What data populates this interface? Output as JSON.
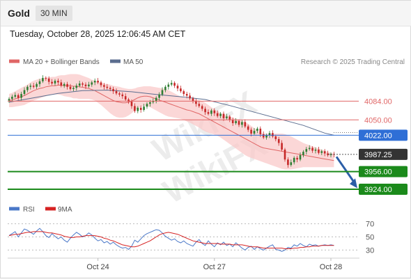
{
  "header": {
    "symbol": "Gold",
    "timeframe": "30 MIN",
    "datetime": "Tuesday, October 28, 2025 12:06:45 AM CET"
  },
  "legend": {
    "ma20_bb": "MA 20 + Bollinger Bands",
    "ma50": "MA 50",
    "rsi": "RSI",
    "ma9": "9MA"
  },
  "credit": "Research © 2025 Trading Central",
  "colors": {
    "candle_up": "#2e7d32",
    "candle_down": "#c62828",
    "ma20": "#e06666",
    "bollinger_fill": "#f9c9c9",
    "ma50": "#5b6d8f",
    "resistance": "#e06666",
    "pivot": "#2f6fd6",
    "support": "#1b8a1b",
    "current": "#333333",
    "arrow": "#2b5ea7",
    "rsi": "#4a78c8",
    "ma9": "#d62222"
  },
  "chart_data": [
    {
      "type": "candlestick",
      "title": "Gold",
      "timeframe": "30 MIN",
      "x_ticks": [
        "Oct 24",
        "Oct 27",
        "Oct 28"
      ],
      "ylim": [
        3900,
        4140
      ],
      "levels": [
        {
          "value": 4084.0,
          "label": "4084.00",
          "kind": "resistance"
        },
        {
          "value": 4050.0,
          "label": "4050.00",
          "kind": "resistance"
        },
        {
          "value": 4022.0,
          "label": "4022.00",
          "kind": "pivot"
        },
        {
          "value": 3987.25,
          "label": "3987.25",
          "kind": "current"
        },
        {
          "value": 3956.0,
          "label": "3956.00",
          "kind": "support"
        },
        {
          "value": 3924.0,
          "label": "3924.00",
          "kind": "support"
        }
      ],
      "close": [
        4088,
        4092,
        4095,
        4090,
        4097,
        4104,
        4110,
        4112,
        4110,
        4115,
        4120,
        4126,
        4125,
        4119,
        4116,
        4121,
        4118,
        4112,
        4115,
        4110,
        4106,
        4108,
        4112,
        4116,
        4114,
        4111,
        4114,
        4118,
        4121,
        4118,
        4113,
        4110,
        4108,
        4106,
        4102,
        4098,
        4096,
        4093,
        4087,
        4083,
        4075,
        4066,
        4072,
        4068,
        4074,
        4079,
        4082,
        4084,
        4090,
        4096,
        4104,
        4110,
        4114,
        4117,
        4112,
        4107,
        4102,
        4097,
        4094,
        4089,
        4084,
        4079,
        4075,
        4070,
        4064,
        4061,
        4067,
        4062,
        4057,
        4061,
        4053,
        4056,
        4050,
        4044,
        4048,
        4041,
        4046,
        4038,
        4032,
        4025,
        4030,
        4034,
        4024,
        4018,
        4022,
        4026,
        4020,
        4015,
        4008,
        3996,
        3978,
        3968,
        3973,
        3981,
        3978,
        3986,
        3992,
        3997,
        3999,
        3994,
        3996,
        3990,
        3993,
        3989,
        3986,
        3988,
        3987
      ],
      "ma20": [
        4085,
        4086,
        4088,
        4090,
        4092,
        4094,
        4097,
        4100,
        4103,
        4105,
        4107,
        4108,
        4110,
        4111,
        4112,
        4112,
        4113,
        4113,
        4112,
        4112,
        4112,
        4111,
        4111,
        4110,
        4109,
        4108,
        4107,
        4105,
        4103,
        4100,
        4097,
        4094,
        4091,
        4088,
        4085,
        4083,
        4082,
        4081,
        4081,
        4082,
        4084,
        4087,
        4090,
        4092,
        4093,
        4093,
        4092,
        4090,
        4088,
        4086,
        4084,
        4082,
        4080,
        4078,
        4076,
        4074,
        4072,
        4070,
        4068,
        4067,
        4065,
        4063,
        4061,
        4058,
        4055,
        4052,
        4049,
        4046,
        4043,
        4040,
        4037,
        4034,
        4031,
        4028,
        4025,
        4022,
        4019,
        4016,
        4013,
        4010,
        4007,
        4004,
        4001,
        3999,
        3998,
        3997,
        3996,
        3995,
        3994,
        3993,
        3992,
        3991,
        3990,
        3989,
        3988,
        3987,
        3986,
        3985,
        3984,
        3983,
        3982,
        3981,
        3980,
        3979,
        3978,
        3977,
        3976
      ],
      "bb_width": [
        12,
        13,
        14,
        15,
        16,
        17,
        17,
        18,
        18,
        18,
        18,
        17,
        17,
        16,
        16,
        16,
        17,
        18,
        19,
        20,
        21,
        22,
        22,
        22,
        21,
        20,
        19,
        18,
        18,
        19,
        20,
        22,
        24,
        26,
        27,
        28,
        28,
        27,
        26,
        24,
        22,
        20,
        19,
        18,
        18,
        18,
        19,
        20,
        21,
        22,
        23,
        24,
        24,
        23,
        22,
        21,
        20,
        20,
        21,
        22,
        23,
        24,
        25,
        26,
        26,
        25,
        24,
        23,
        22,
        22,
        23,
        24,
        25,
        26,
        27,
        28,
        29,
        30,
        30,
        29,
        28,
        27,
        26,
        26,
        27,
        28,
        29,
        30,
        31,
        32,
        32,
        31,
        30,
        28,
        26,
        24,
        22,
        21,
        20,
        19,
        18,
        17,
        16,
        15,
        14,
        13,
        12
      ],
      "ma50_points": [
        [
          0,
          4082
        ],
        [
          8,
          4090
        ],
        [
          16,
          4098
        ],
        [
          24,
          4103
        ],
        [
          32,
          4104
        ],
        [
          40,
          4101
        ],
        [
          48,
          4096
        ],
        [
          56,
          4092
        ],
        [
          64,
          4087
        ],
        [
          72,
          4076
        ],
        [
          80,
          4064
        ],
        [
          88,
          4052
        ],
        [
          96,
          4040
        ],
        [
          103,
          4026
        ],
        [
          106,
          4022
        ]
      ]
    },
    {
      "type": "line",
      "title": "RSI",
      "series": [
        {
          "name": "RSI",
          "values": [
            52,
            55,
            58,
            50,
            56,
            62,
            60,
            57,
            54,
            59,
            63,
            58,
            52,
            49,
            55,
            51,
            47,
            50,
            45,
            42,
            48,
            53,
            57,
            54,
            50,
            52,
            56,
            53,
            48,
            44,
            46,
            41,
            43,
            39,
            42,
            38,
            35,
            33,
            34,
            31,
            36,
            45,
            42,
            47,
            52,
            55,
            57,
            59,
            61,
            60,
            56,
            51,
            48,
            45,
            47,
            43,
            41,
            44,
            40,
            38,
            36,
            42,
            46,
            40,
            37,
            44,
            39,
            35,
            41,
            38,
            42,
            37,
            39,
            35,
            41,
            37,
            33,
            30,
            34,
            36,
            31,
            35,
            32,
            30,
            33,
            36,
            38,
            31,
            30,
            28,
            30,
            34,
            33,
            38,
            36,
            40,
            37,
            35,
            39,
            37,
            38,
            36,
            37,
            38,
            37,
            38,
            37
          ]
        },
        {
          "name": "9MA",
          "values": [
            52,
            53,
            54,
            54,
            55,
            56,
            57,
            57,
            58,
            58,
            58,
            58,
            57,
            56,
            56,
            55,
            54,
            53,
            51,
            50,
            49,
            49,
            50,
            50,
            51,
            52,
            52,
            52,
            52,
            51,
            50,
            48,
            47,
            45,
            44,
            42,
            40,
            38,
            37,
            36,
            35,
            35,
            36,
            38,
            40,
            42,
            44,
            47,
            50,
            53,
            55,
            56,
            57,
            56,
            55,
            54,
            52,
            50,
            48,
            46,
            44,
            43,
            42,
            41,
            40,
            40,
            40,
            40,
            40,
            39,
            39,
            39,
            39,
            38,
            38,
            38,
            38,
            37,
            36,
            35,
            35,
            35,
            34,
            33,
            33,
            33,
            33,
            33,
            33,
            33,
            32,
            32,
            32,
            33,
            33,
            34,
            34,
            35,
            35,
            36,
            36,
            36,
            37,
            37,
            37,
            37,
            37
          ]
        }
      ],
      "y_ticks": [
        70,
        50,
        30
      ],
      "ylim": [
        22,
        78
      ]
    }
  ]
}
